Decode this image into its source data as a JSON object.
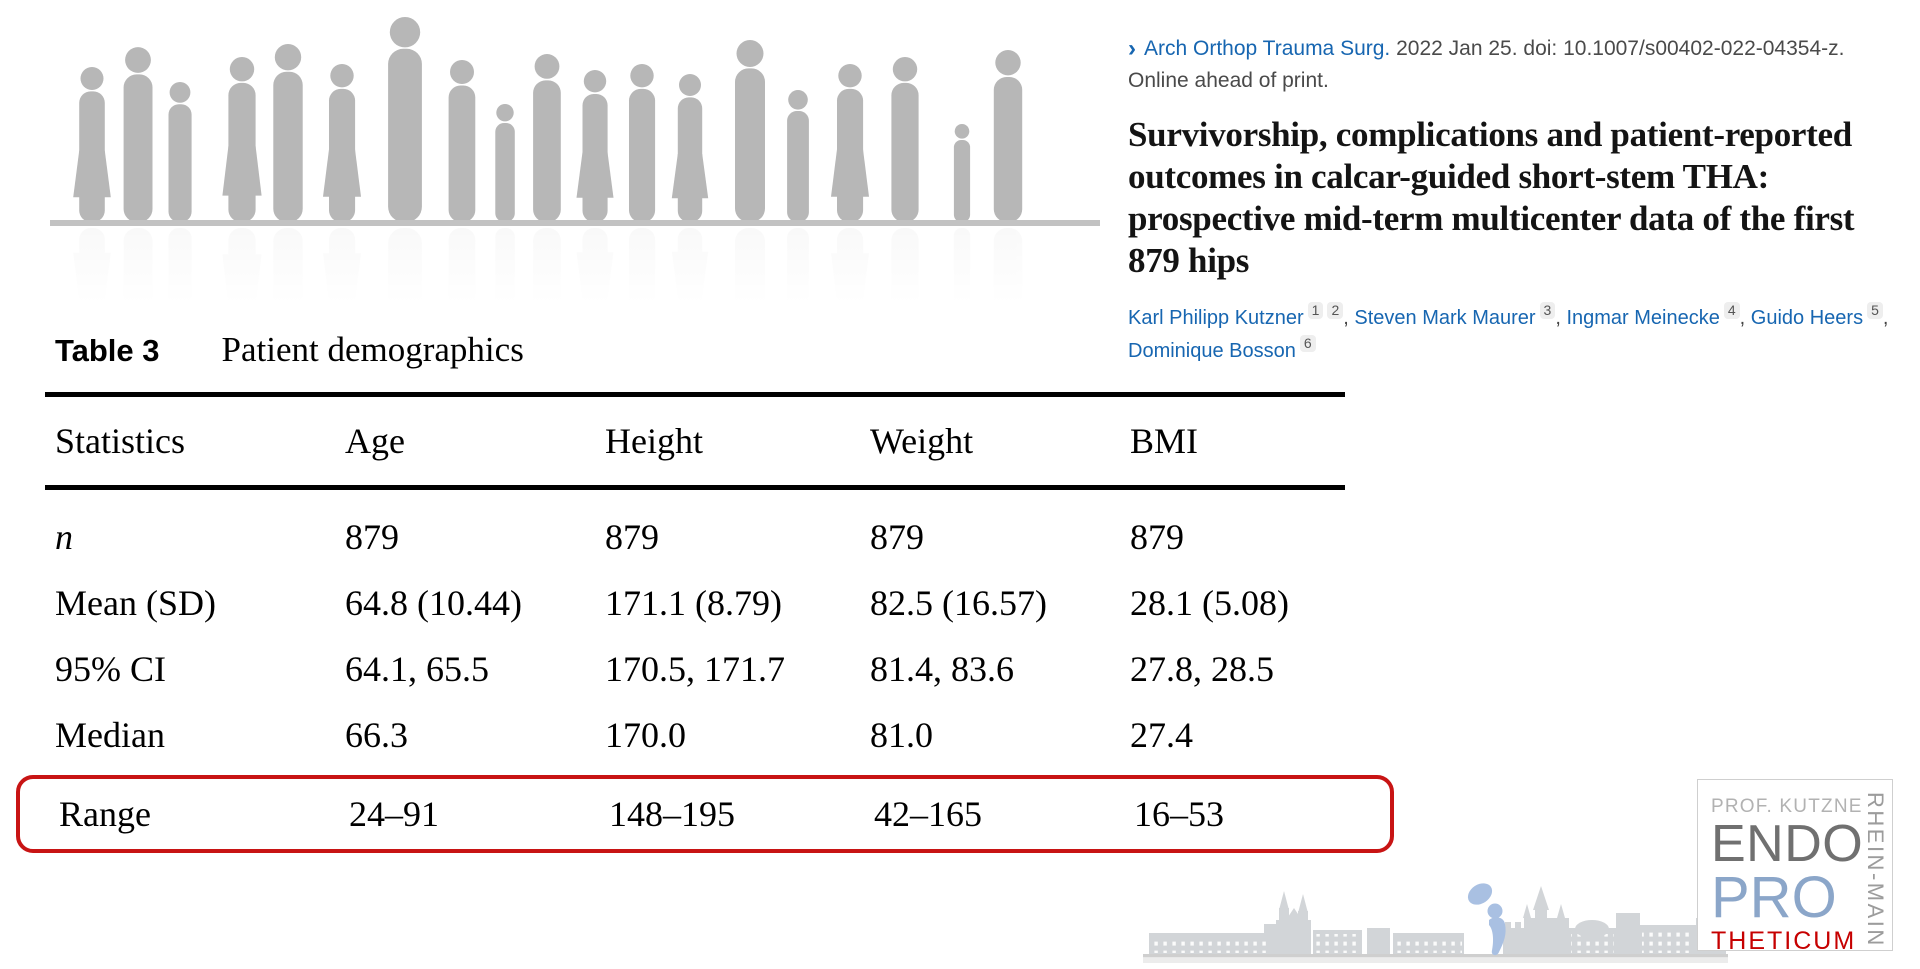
{
  "citation": {
    "journal": "Arch Orthop Trauma Surg.",
    "meta": " 2022 Jan 25. doi: 10.1007/s00402-022-04354-z.",
    "status": "Online ahead of print.",
    "chevron": "›"
  },
  "article": {
    "title_lines": [
      "Survivorship, complications and patient-reported",
      "outcomes in calcar-guided short-stem THA:",
      "prospective mid-term multicenter data of the first",
      "879 hips"
    ]
  },
  "authors": [
    {
      "name": "Karl Philipp Kutzner",
      "sups": [
        "1",
        "2"
      ]
    },
    {
      "name": "Steven Mark Maurer",
      "sups": [
        "3"
      ]
    },
    {
      "name": "Ingmar Meinecke",
      "sups": [
        "4"
      ]
    },
    {
      "name": "Guido Heers",
      "sups": [
        "5"
      ]
    },
    {
      "name": "Dominique Bosson",
      "sups": [
        "6"
      ]
    }
  ],
  "table": {
    "label": "Table 3",
    "caption": "Patient demographics",
    "columns": [
      "Statistics",
      "Age",
      "Height",
      "Weight",
      "BMI"
    ],
    "rows": [
      {
        "label": "n",
        "italic": true,
        "values": [
          "879",
          "879",
          "879",
          "879"
        ]
      },
      {
        "label": "Mean (SD)",
        "values": [
          "64.8 (10.44)",
          "171.1 (8.79)",
          "82.5 (16.57)",
          "28.1 (5.08)"
        ]
      },
      {
        "label": "95% CI",
        "values": [
          "64.1, 65.5",
          "170.5, 171.7",
          "81.4, 83.6",
          "27.8, 28.5"
        ]
      },
      {
        "label": "Median",
        "values": [
          "66.3",
          "170.0",
          "81.0",
          "27.4"
        ]
      },
      {
        "label": "Range",
        "values": [
          "24–91",
          "148–195",
          "42–165",
          "16–53"
        ],
        "highlighted": true
      }
    ],
    "highlight_color": "#c81414"
  },
  "logo": {
    "line1": "PROF. KUTZNER",
    "line2": "ENDO",
    "line3": "PRO",
    "line4": "THETICUM",
    "side": "RHEIN-MAIN",
    "colors": {
      "line1": "#b2b2b2",
      "line2": "#707070",
      "line3": "#8ba6c9",
      "line4": "#c60000",
      "side": "#9c9c9c"
    }
  },
  "colors": {
    "link_blue": "#1766b1",
    "annotation_red": "#c81414",
    "silhouette_gray": "#b7b7b7",
    "skyline_gray": "#d2d5d8",
    "implant_blue": "#a9c0e2"
  },
  "illustration": {
    "people": [
      [
        42,
        155,
        "f"
      ],
      [
        88,
        175,
        "m"
      ],
      [
        130,
        140,
        "m"
      ],
      [
        192,
        165,
        "f"
      ],
      [
        238,
        178,
        "m"
      ],
      [
        292,
        158,
        "f"
      ],
      [
        355,
        205,
        "m"
      ],
      [
        412,
        162,
        "m"
      ],
      [
        455,
        118,
        "c"
      ],
      [
        497,
        168,
        "m"
      ],
      [
        545,
        152,
        "f"
      ],
      [
        592,
        158,
        "m"
      ],
      [
        640,
        148,
        "f"
      ],
      [
        700,
        182,
        "m"
      ],
      [
        748,
        132,
        "c"
      ],
      [
        800,
        158,
        "f"
      ],
      [
        855,
        165,
        "m"
      ],
      [
        912,
        98,
        "c"
      ],
      [
        958,
        172,
        "m"
      ]
    ]
  }
}
